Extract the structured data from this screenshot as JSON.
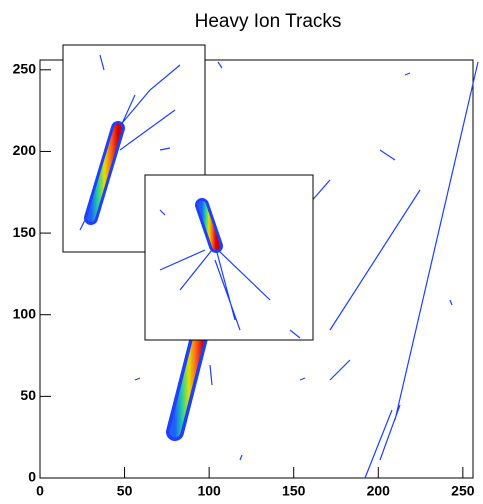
{
  "chart_data": {
    "type": "image",
    "title": "Heavy Ion Tracks",
    "xlim": [
      0,
      256
    ],
    "ylim": [
      0,
      256
    ],
    "xticks": [
      0,
      50,
      100,
      150,
      200,
      250
    ],
    "yticks": [
      0,
      50,
      100,
      150,
      200,
      250
    ]
  }
}
